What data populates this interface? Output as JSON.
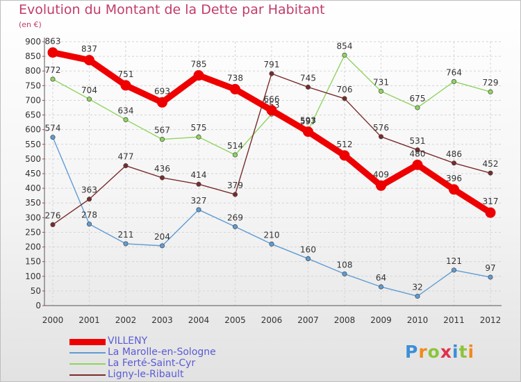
{
  "title": "Evolution du Montant de la Dette par Habitant",
  "unit": "(en €)",
  "logo": "Proxiti",
  "chart_data": {
    "type": "line",
    "title": "Evolution du Montant de la Dette par Habitant",
    "subtitle": "(en €)",
    "x": [
      2000,
      2001,
      2002,
      2003,
      2004,
      2005,
      2006,
      2007,
      2008,
      2009,
      2010,
      2011,
      2012
    ],
    "ylim": [
      0,
      900
    ],
    "yticks": [
      0,
      50,
      100,
      150,
      200,
      250,
      300,
      350,
      400,
      450,
      500,
      550,
      600,
      650,
      700,
      750,
      800,
      850,
      900
    ],
    "grid": true,
    "legend": "bottom-left",
    "series": [
      {
        "name": "VILLENY",
        "color": "#ee0000",
        "values": [
          863,
          837,
          751,
          693,
          785,
          738,
          666,
          593,
          512,
          409,
          480,
          396,
          317
        ]
      },
      {
        "name": "La Marolle-en-Sologne",
        "color": "#5e9cd3",
        "values": [
          574,
          278,
          211,
          204,
          327,
          269,
          210,
          160,
          108,
          64,
          32,
          121,
          97
        ]
      },
      {
        "name": "La Ferté-Saint-Cyr",
        "color": "#8fd45f",
        "values": [
          772,
          704,
          634,
          567,
          575,
          514,
          653,
          597,
          854,
          731,
          675,
          764,
          729
        ]
      },
      {
        "name": "Ligny-le-Ribault",
        "color": "#7a2b2b",
        "values": [
          276,
          363,
          477,
          436,
          414,
          379,
          791,
          745,
          706,
          576,
          531,
          486,
          452
        ]
      }
    ]
  }
}
